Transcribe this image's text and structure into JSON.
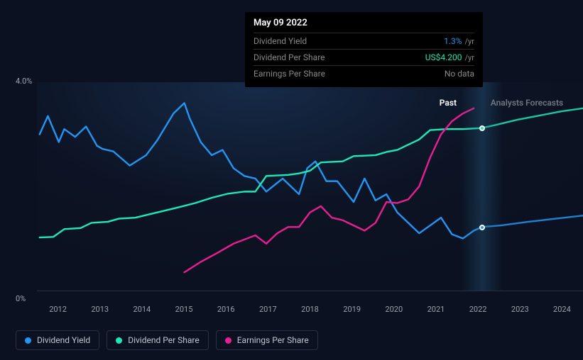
{
  "chart": {
    "background_color": "#0b1120",
    "ylim": [
      0,
      4
    ],
    "y_ticks": {
      "top": "4.0%",
      "bottom": "0%"
    },
    "x_ticks": [
      "2012",
      "2013",
      "2014",
      "2015",
      "2016",
      "2017",
      "2018",
      "2019",
      "2020",
      "2021",
      "2022",
      "2023",
      "2024"
    ],
    "regions": {
      "past_label": "Past",
      "future_label": "Analysts Forecasts"
    },
    "separator_x": 81.5,
    "line_width": 2.4,
    "marker_radius": 4,
    "series": {
      "dividend_yield": {
        "label": "Dividend Yield",
        "color": "#2196f3",
        "marker_at_separator_y": 1.22,
        "points": [
          [
            0.5,
            3.0
          ],
          [
            2,
            3.35
          ],
          [
            4,
            2.85
          ],
          [
            5,
            3.1
          ],
          [
            7,
            2.95
          ],
          [
            9,
            3.15
          ],
          [
            11,
            2.78
          ],
          [
            12,
            2.72
          ],
          [
            14,
            2.67
          ],
          [
            17,
            2.4
          ],
          [
            20,
            2.6
          ],
          [
            22,
            2.88
          ],
          [
            25,
            3.4
          ],
          [
            27,
            3.6
          ],
          [
            28,
            3.3
          ],
          [
            30,
            2.85
          ],
          [
            32,
            2.6
          ],
          [
            34,
            2.7
          ],
          [
            36,
            2.35
          ],
          [
            38,
            2.2
          ],
          [
            40,
            2.15
          ],
          [
            42,
            1.9
          ],
          [
            45,
            2.15
          ],
          [
            48,
            1.85
          ],
          [
            49.5,
            2.35
          ],
          [
            51,
            2.48
          ],
          [
            53,
            2.1
          ],
          [
            55,
            2.1
          ],
          [
            58,
            1.7
          ],
          [
            60,
            2.15
          ],
          [
            62,
            1.73
          ],
          [
            64,
            1.85
          ],
          [
            66,
            1.5
          ],
          [
            68,
            1.3
          ],
          [
            70,
            1.1
          ],
          [
            74,
            1.4
          ],
          [
            76,
            1.08
          ],
          [
            78,
            1.0
          ],
          [
            80,
            1.15
          ],
          [
            81.5,
            1.22
          ],
          [
            85,
            1.25
          ],
          [
            90,
            1.32
          ],
          [
            95,
            1.38
          ],
          [
            100,
            1.44
          ]
        ]
      },
      "dividend_per_share": {
        "label": "Dividend Per Share",
        "color": "#1de9b6",
        "marker_at_separator_y": 3.12,
        "points": [
          [
            0.5,
            1.02
          ],
          [
            3,
            1.03
          ],
          [
            5,
            1.18
          ],
          [
            8,
            1.2
          ],
          [
            10,
            1.3
          ],
          [
            13,
            1.32
          ],
          [
            15,
            1.38
          ],
          [
            18,
            1.4
          ],
          [
            22,
            1.5
          ],
          [
            26,
            1.6
          ],
          [
            29,
            1.68
          ],
          [
            32,
            1.78
          ],
          [
            35,
            1.86
          ],
          [
            38,
            1.9
          ],
          [
            40,
            1.9
          ],
          [
            42,
            2.2
          ],
          [
            46,
            2.22
          ],
          [
            48,
            2.25
          ],
          [
            50,
            2.3
          ],
          [
            52,
            2.46
          ],
          [
            56,
            2.48
          ],
          [
            58,
            2.58
          ],
          [
            62,
            2.6
          ],
          [
            64,
            2.66
          ],
          [
            66,
            2.7
          ],
          [
            68,
            2.8
          ],
          [
            70,
            2.9
          ],
          [
            72,
            3.08
          ],
          [
            75,
            3.1
          ],
          [
            78,
            3.1
          ],
          [
            81.5,
            3.12
          ],
          [
            84,
            3.18
          ],
          [
            88,
            3.28
          ],
          [
            92,
            3.36
          ],
          [
            96,
            3.44
          ],
          [
            100,
            3.5
          ]
        ]
      },
      "earnings_per_share": {
        "label": "Earnings Per Share",
        "color": "#e91e90",
        "points": [
          [
            27,
            0.35
          ],
          [
            30,
            0.55
          ],
          [
            33,
            0.72
          ],
          [
            36,
            0.9
          ],
          [
            38,
            0.98
          ],
          [
            40,
            1.06
          ],
          [
            42,
            0.9
          ],
          [
            44,
            1.1
          ],
          [
            46,
            1.22
          ],
          [
            48,
            1.22
          ],
          [
            50,
            1.5
          ],
          [
            52,
            1.62
          ],
          [
            54,
            1.4
          ],
          [
            56,
            1.35
          ],
          [
            58,
            1.25
          ],
          [
            60,
            1.15
          ],
          [
            62,
            1.3
          ],
          [
            64,
            1.7
          ],
          [
            66,
            1.68
          ],
          [
            68,
            1.75
          ],
          [
            70,
            2.0
          ],
          [
            72,
            2.55
          ],
          [
            74,
            3.0
          ],
          [
            76,
            3.25
          ],
          [
            78,
            3.4
          ],
          [
            80,
            3.5
          ]
        ]
      }
    }
  },
  "tooltip": {
    "date": "May 09 2022",
    "rows": [
      {
        "label": "Dividend Yield",
        "value": "1.3%",
        "unit": "/yr",
        "color": "#2196f3"
      },
      {
        "label": "Dividend Per Share",
        "value": "US$4.200",
        "unit": "/yr",
        "color": "#1de9b6"
      },
      {
        "label": "Earnings Per Share",
        "value": "No data",
        "unit": "",
        "color": "#888888"
      }
    ]
  },
  "legend": [
    {
      "key": "dividend_yield",
      "label": "Dividend Yield",
      "color": "#2196f3"
    },
    {
      "key": "dividend_per_share",
      "label": "Dividend Per Share",
      "color": "#1de9b6"
    },
    {
      "key": "earnings_per_share",
      "label": "Earnings Per Share",
      "color": "#e91e90"
    }
  ]
}
